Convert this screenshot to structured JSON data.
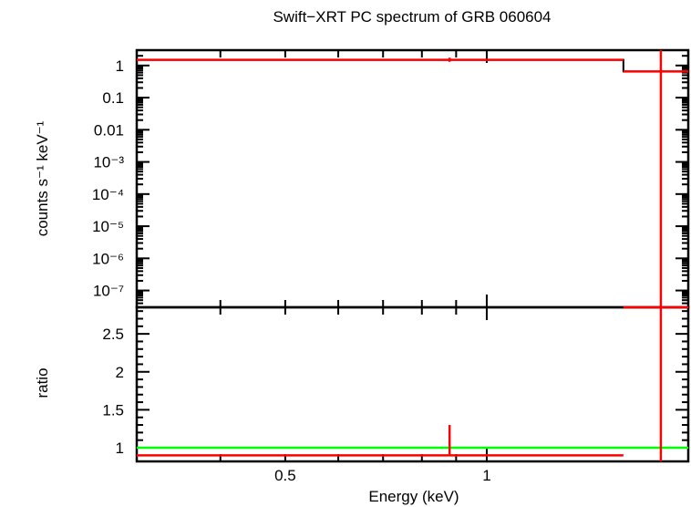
{
  "chart_data": [
    {
      "type": "line",
      "title": "Swift−XRT PC spectrum of GRB 060604",
      "ylabel": "counts s⁻¹ keV⁻¹",
      "xscale": "log",
      "yscale": "log",
      "xlim": [
        0.3,
        2.0
      ],
      "ylim": [
        3e-08,
        3.0
      ],
      "ytick_labels": [
        "1",
        "0.1",
        "0.01",
        "10⁻³",
        "10⁻⁴",
        "10⁻⁵",
        "10⁻⁶",
        "10⁻⁷"
      ],
      "series": [
        {
          "role": "model",
          "color": "#000000",
          "steps": [
            {
              "x0": 0.3,
              "x1": 1.6,
              "y": 1.5
            },
            {
              "x0": 1.6,
              "x1": 2.0,
              "y": 0.65
            }
          ]
        },
        {
          "role": "data",
          "color": "#ff0000",
          "points": [
            {
              "x": 0.88,
              "y": 1.5,
              "xerr": [
                0.3,
                1.6
              ],
              "yerr": [
                1.3,
                1.75
              ]
            },
            {
              "x": 1.82,
              "y": 0.65,
              "xerr": [
                1.6,
                2.0
              ],
              "yerr": [
                3e-08,
                3.0
              ]
            }
          ]
        }
      ]
    },
    {
      "type": "line",
      "xlabel": "Energy (keV)",
      "ylabel": "ratio",
      "xscale": "log",
      "xlim": [
        0.3,
        2.0
      ],
      "ylim": [
        0.82,
        2.85
      ],
      "xtick_labels": [
        "0.5",
        "1"
      ],
      "ytick_labels": [
        "2.5",
        "2",
        "1.5",
        "1"
      ],
      "reference_line": {
        "y": 1.0,
        "color": "#00ff00"
      },
      "series": [
        {
          "role": "ratio",
          "color": "#ff0000",
          "points": [
            {
              "x": 0.88,
              "y": 0.9,
              "xerr": [
                0.3,
                1.6
              ],
              "yerr": [
                0.9,
                1.3
              ]
            },
            {
              "x": 1.82,
              "y": 2.85,
              "xerr": [
                1.6,
                2.0
              ],
              "yerr": [
                0.82,
                2.85
              ]
            }
          ]
        }
      ]
    }
  ]
}
